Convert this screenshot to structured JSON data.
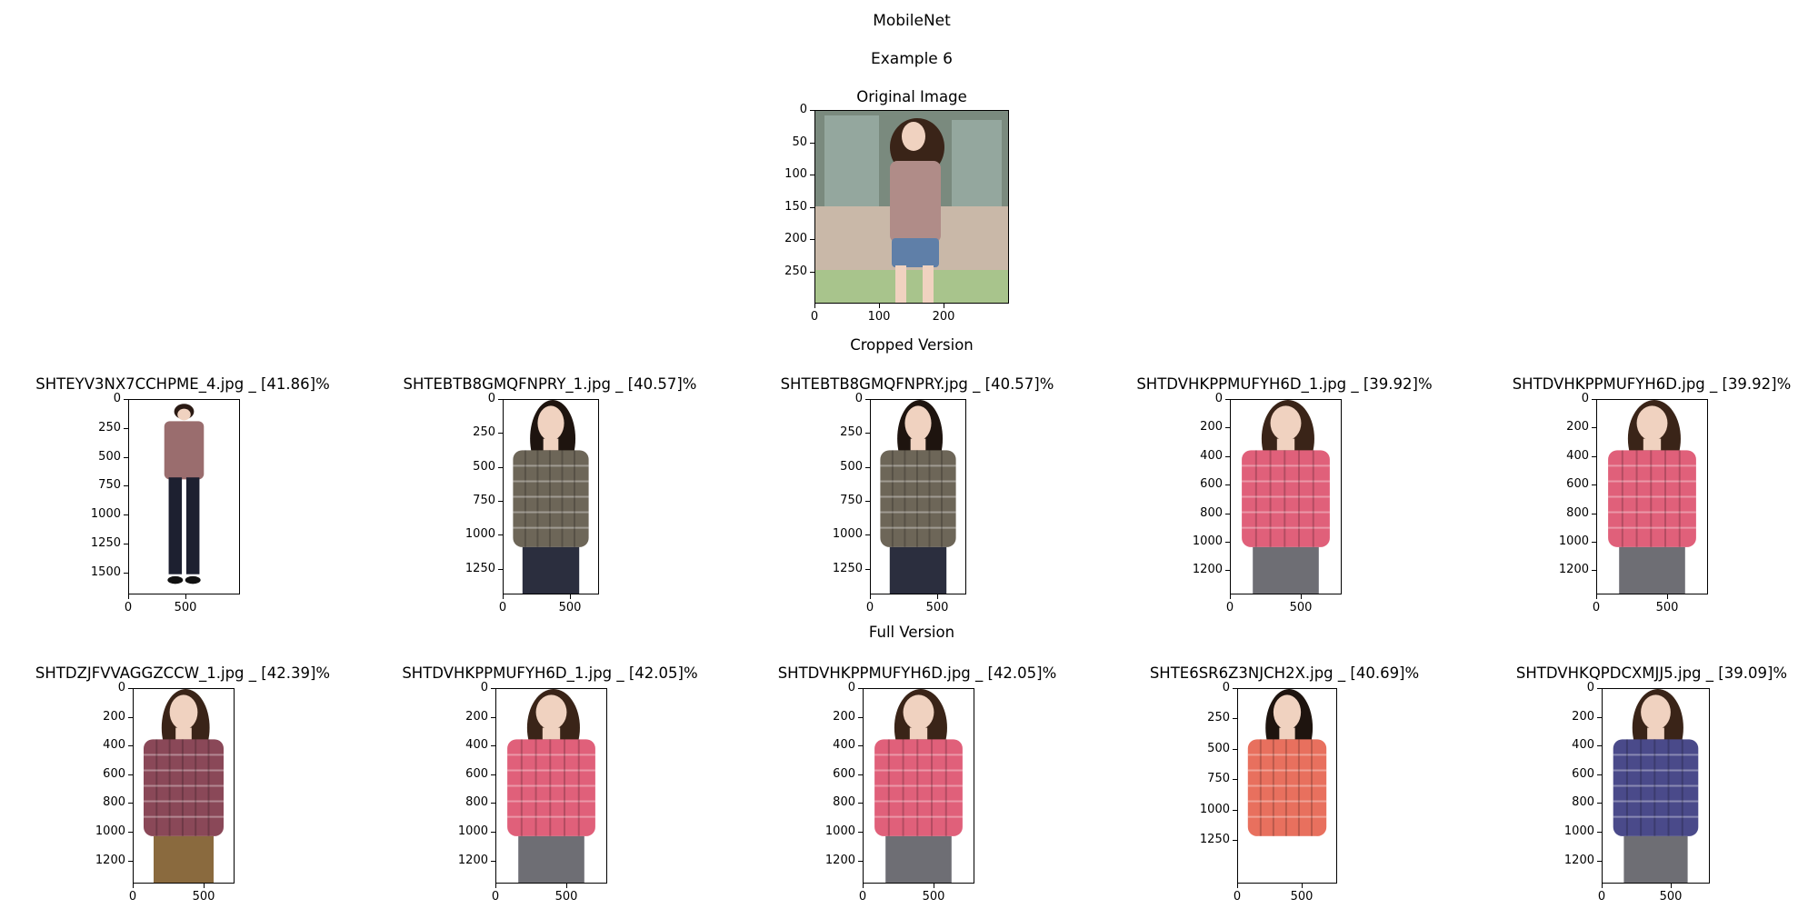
{
  "figure": {
    "model_title": "MobileNet",
    "example_title": "Example 6"
  },
  "original": {
    "title": "Original Image",
    "y_ticks": [
      "0",
      "50",
      "100",
      "150",
      "200",
      "250"
    ],
    "x_ticks": [
      "0",
      "100",
      "200"
    ],
    "image_colors": {
      "background_top": "#7a8a7e",
      "background_window": "#9fb3ad",
      "floor": "#c9b8a8",
      "grass": "#a8c48c",
      "shirt": "#b08c88",
      "shorts": "#5f7fa8",
      "hair": "#3a2418",
      "skin": "#f0d2c0"
    }
  },
  "cropped": {
    "section_title": "Cropped Version",
    "items": [
      {
        "title": "SHTEYV3NX7CCHPME_4.jpg _ [41.86]%",
        "y_ticks": [
          "0",
          "250",
          "500",
          "750",
          "1000",
          "1250",
          "1500"
        ],
        "x_ticks": [
          "0",
          "500"
        ],
        "shirt_color": "#9a6d6e",
        "pants_color": "#1d2030",
        "hair_color": "#2a1a14",
        "bg_color": "#ffffff",
        "figure": "fullbody"
      },
      {
        "title": "SHTEBTB8GMQFNPRY_1.jpg _ [40.57]%",
        "y_ticks": [
          "0",
          "250",
          "500",
          "750",
          "1000",
          "1250"
        ],
        "x_ticks": [
          "0",
          "500"
        ],
        "shirt_color": "#6d6658",
        "pants_color": "#2b2e3e",
        "hair_color": "#1e140f",
        "bg_color": "#ffffff",
        "figure": "upper"
      },
      {
        "title": "SHTEBTB8GMQFNPRY.jpg _ [40.57]%",
        "y_ticks": [
          "0",
          "250",
          "500",
          "750",
          "1000",
          "1250"
        ],
        "x_ticks": [
          "0",
          "500"
        ],
        "shirt_color": "#6d6658",
        "pants_color": "#2b2e3e",
        "hair_color": "#1e140f",
        "bg_color": "#ffffff",
        "figure": "upper"
      },
      {
        "title": "SHTDVHKPPMUFYH6D_1.jpg _ [39.92]%",
        "y_ticks": [
          "0",
          "200",
          "400",
          "600",
          "800",
          "1000",
          "1200"
        ],
        "x_ticks": [
          "0",
          "500"
        ],
        "shirt_color": "#e0607a",
        "pants_color": "#6e6e74",
        "hair_color": "#3a2418",
        "bg_color": "#ffffff",
        "figure": "upper"
      },
      {
        "title": "SHTDVHKPPMUFYH6D.jpg _ [39.92]%",
        "y_ticks": [
          "0",
          "200",
          "400",
          "600",
          "800",
          "1000",
          "1200"
        ],
        "x_ticks": [
          "0",
          "500"
        ],
        "shirt_color": "#e0607a",
        "pants_color": "#6e6e74",
        "hair_color": "#3a2418",
        "bg_color": "#ffffff",
        "figure": "upper"
      }
    ]
  },
  "full": {
    "section_title": "Full Version",
    "items": [
      {
        "title": "SHTDZJFVVAGGZCCW_1.jpg _ [42.39]%",
        "y_ticks": [
          "0",
          "200",
          "400",
          "600",
          "800",
          "1000",
          "1200"
        ],
        "x_ticks": [
          "0",
          "500"
        ],
        "shirt_color": "#8a4858",
        "pants_color": "#8a6a3e",
        "hair_color": "#3a2418",
        "bg_color": "#ffffff",
        "figure": "upper"
      },
      {
        "title": "SHTDVHKPPMUFYH6D_1.jpg _ [42.05]%",
        "y_ticks": [
          "0",
          "200",
          "400",
          "600",
          "800",
          "1000",
          "1200"
        ],
        "x_ticks": [
          "0",
          "500"
        ],
        "shirt_color": "#e0607a",
        "pants_color": "#6e6e74",
        "hair_color": "#3a2418",
        "bg_color": "#ffffff",
        "figure": "upper"
      },
      {
        "title": "SHTDVHKPPMUFYH6D.jpg _ [42.05]%",
        "y_ticks": [
          "0",
          "200",
          "400",
          "600",
          "800",
          "1000",
          "1200"
        ],
        "x_ticks": [
          "0",
          "500"
        ],
        "shirt_color": "#e0607a",
        "pants_color": "#6e6e74",
        "hair_color": "#3a2418",
        "bg_color": "#ffffff",
        "figure": "upper"
      },
      {
        "title": "SHTE6SR6Z3NJCH2X.jpg _ [40.69]%",
        "y_ticks": [
          "0",
          "250",
          "500",
          "750",
          "1000",
          "1250"
        ],
        "x_ticks": [
          "0",
          "500"
        ],
        "shirt_color": "#e8705e",
        "pants_color": "#ffffff",
        "hair_color": "#1e140f",
        "bg_color": "#ffffff",
        "figure": "upper"
      },
      {
        "title": "SHTDVHKQPDCXMJJ5.jpg _ [39.09]%",
        "y_ticks": [
          "0",
          "200",
          "400",
          "600",
          "800",
          "1000",
          "1200"
        ],
        "x_ticks": [
          "0",
          "500"
        ],
        "shirt_color": "#4a4a8a",
        "pants_color": "#6e6e74",
        "hair_color": "#3a2418",
        "bg_color": "#ffffff",
        "figure": "upper"
      }
    ]
  }
}
